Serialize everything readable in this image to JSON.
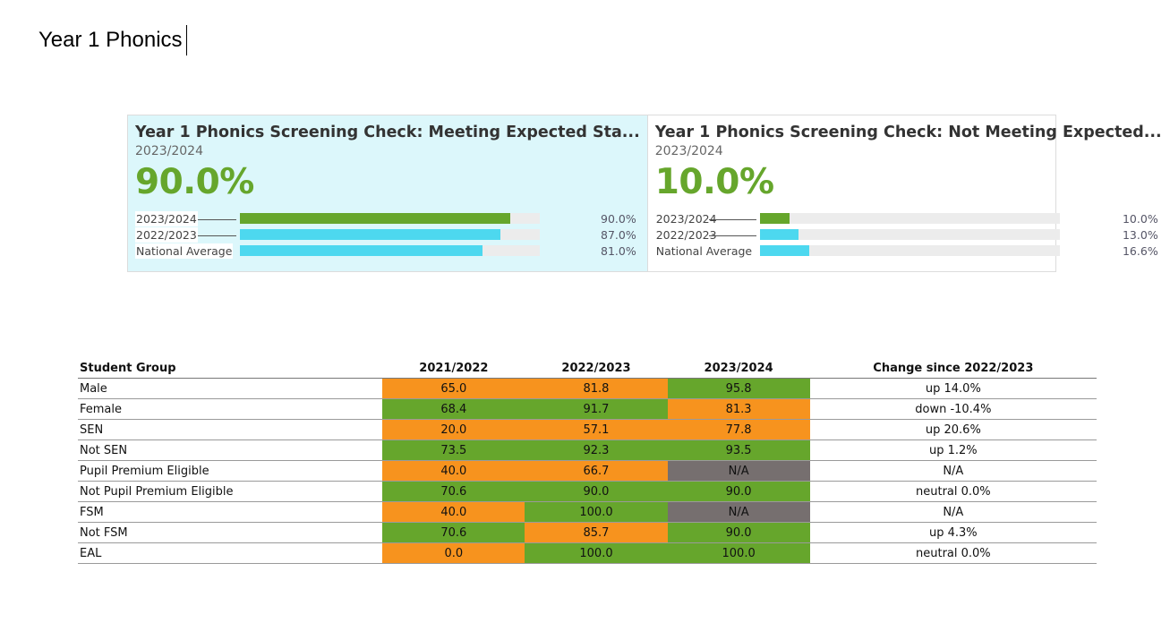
{
  "doc": {
    "title": "Year 1 Phonics"
  },
  "colors": {
    "green": "#66a62c",
    "cyan": "#4dd8ef",
    "orange": "#f7931e",
    "grey": "#766f6f",
    "track": "#ececec",
    "active_card_bg": "#dcf7fb"
  },
  "cards": [
    {
      "title": "Year 1 Phonics Screening Check: Meeting Expected Sta...",
      "year": "2023/2024",
      "big_value": "90.0%",
      "rows": [
        {
          "label": "2023/2024",
          "value": 90.0,
          "value_text": "90.0%",
          "color": "#66a62c"
        },
        {
          "label": "2022/2023",
          "value": 87.0,
          "value_text": "87.0%",
          "color": "#4dd8ef"
        },
        {
          "label": "National Average",
          "value": 81.0,
          "value_text": "81.0%",
          "color": "#4dd8ef"
        }
      ]
    },
    {
      "title": "Year 1 Phonics Screening Check: Not Meeting Expected...",
      "year": "2023/2024",
      "big_value": "10.0%",
      "rows": [
        {
          "label": "2023/2024",
          "value": 10.0,
          "value_text": "10.0%",
          "color": "#66a62c"
        },
        {
          "label": "2022/2023",
          "value": 13.0,
          "value_text": "13.0%",
          "color": "#4dd8ef"
        },
        {
          "label": "National Average",
          "value": 16.6,
          "value_text": "16.6%",
          "color": "#4dd8ef"
        }
      ]
    }
  ],
  "table": {
    "headers": [
      "Student Group",
      "2021/2022",
      "2022/2023",
      "2023/2024",
      "Change since 2022/2023"
    ],
    "rows": [
      {
        "group": "Male",
        "cells": [
          {
            "text": "65.0",
            "status": "orange"
          },
          {
            "text": "81.8",
            "status": "orange"
          },
          {
            "text": "95.8",
            "status": "green"
          }
        ],
        "change": "up 14.0%"
      },
      {
        "group": "Female",
        "cells": [
          {
            "text": "68.4",
            "status": "green"
          },
          {
            "text": "91.7",
            "status": "green"
          },
          {
            "text": "81.3",
            "status": "orange"
          }
        ],
        "change": "down -10.4%"
      },
      {
        "group": "SEN",
        "cells": [
          {
            "text": "20.0",
            "status": "orange"
          },
          {
            "text": "57.1",
            "status": "orange"
          },
          {
            "text": "77.8",
            "status": "orange"
          }
        ],
        "change": "up 20.6%"
      },
      {
        "group": "Not SEN",
        "cells": [
          {
            "text": "73.5",
            "status": "green"
          },
          {
            "text": "92.3",
            "status": "green"
          },
          {
            "text": "93.5",
            "status": "green"
          }
        ],
        "change": "up 1.2%"
      },
      {
        "group": "Pupil Premium Eligible",
        "cells": [
          {
            "text": "40.0",
            "status": "orange"
          },
          {
            "text": "66.7",
            "status": "orange"
          },
          {
            "text": "N/A",
            "status": "grey"
          }
        ],
        "change": "N/A"
      },
      {
        "group": "Not Pupil Premium Eligible",
        "cells": [
          {
            "text": "70.6",
            "status": "green"
          },
          {
            "text": "90.0",
            "status": "green"
          },
          {
            "text": "90.0",
            "status": "green"
          }
        ],
        "change": "neutral 0.0%"
      },
      {
        "group": "FSM",
        "cells": [
          {
            "text": "40.0",
            "status": "orange"
          },
          {
            "text": "100.0",
            "status": "green"
          },
          {
            "text": "N/A",
            "status": "grey"
          }
        ],
        "change": "N/A"
      },
      {
        "group": "Not FSM",
        "cells": [
          {
            "text": "70.6",
            "status": "green"
          },
          {
            "text": "85.7",
            "status": "orange"
          },
          {
            "text": "90.0",
            "status": "green"
          }
        ],
        "change": "up 4.3%"
      },
      {
        "group": "EAL",
        "cells": [
          {
            "text": "0.0",
            "status": "orange"
          },
          {
            "text": "100.0",
            "status": "green"
          },
          {
            "text": "100.0",
            "status": "green"
          }
        ],
        "change": "neutral 0.0%"
      }
    ]
  }
}
